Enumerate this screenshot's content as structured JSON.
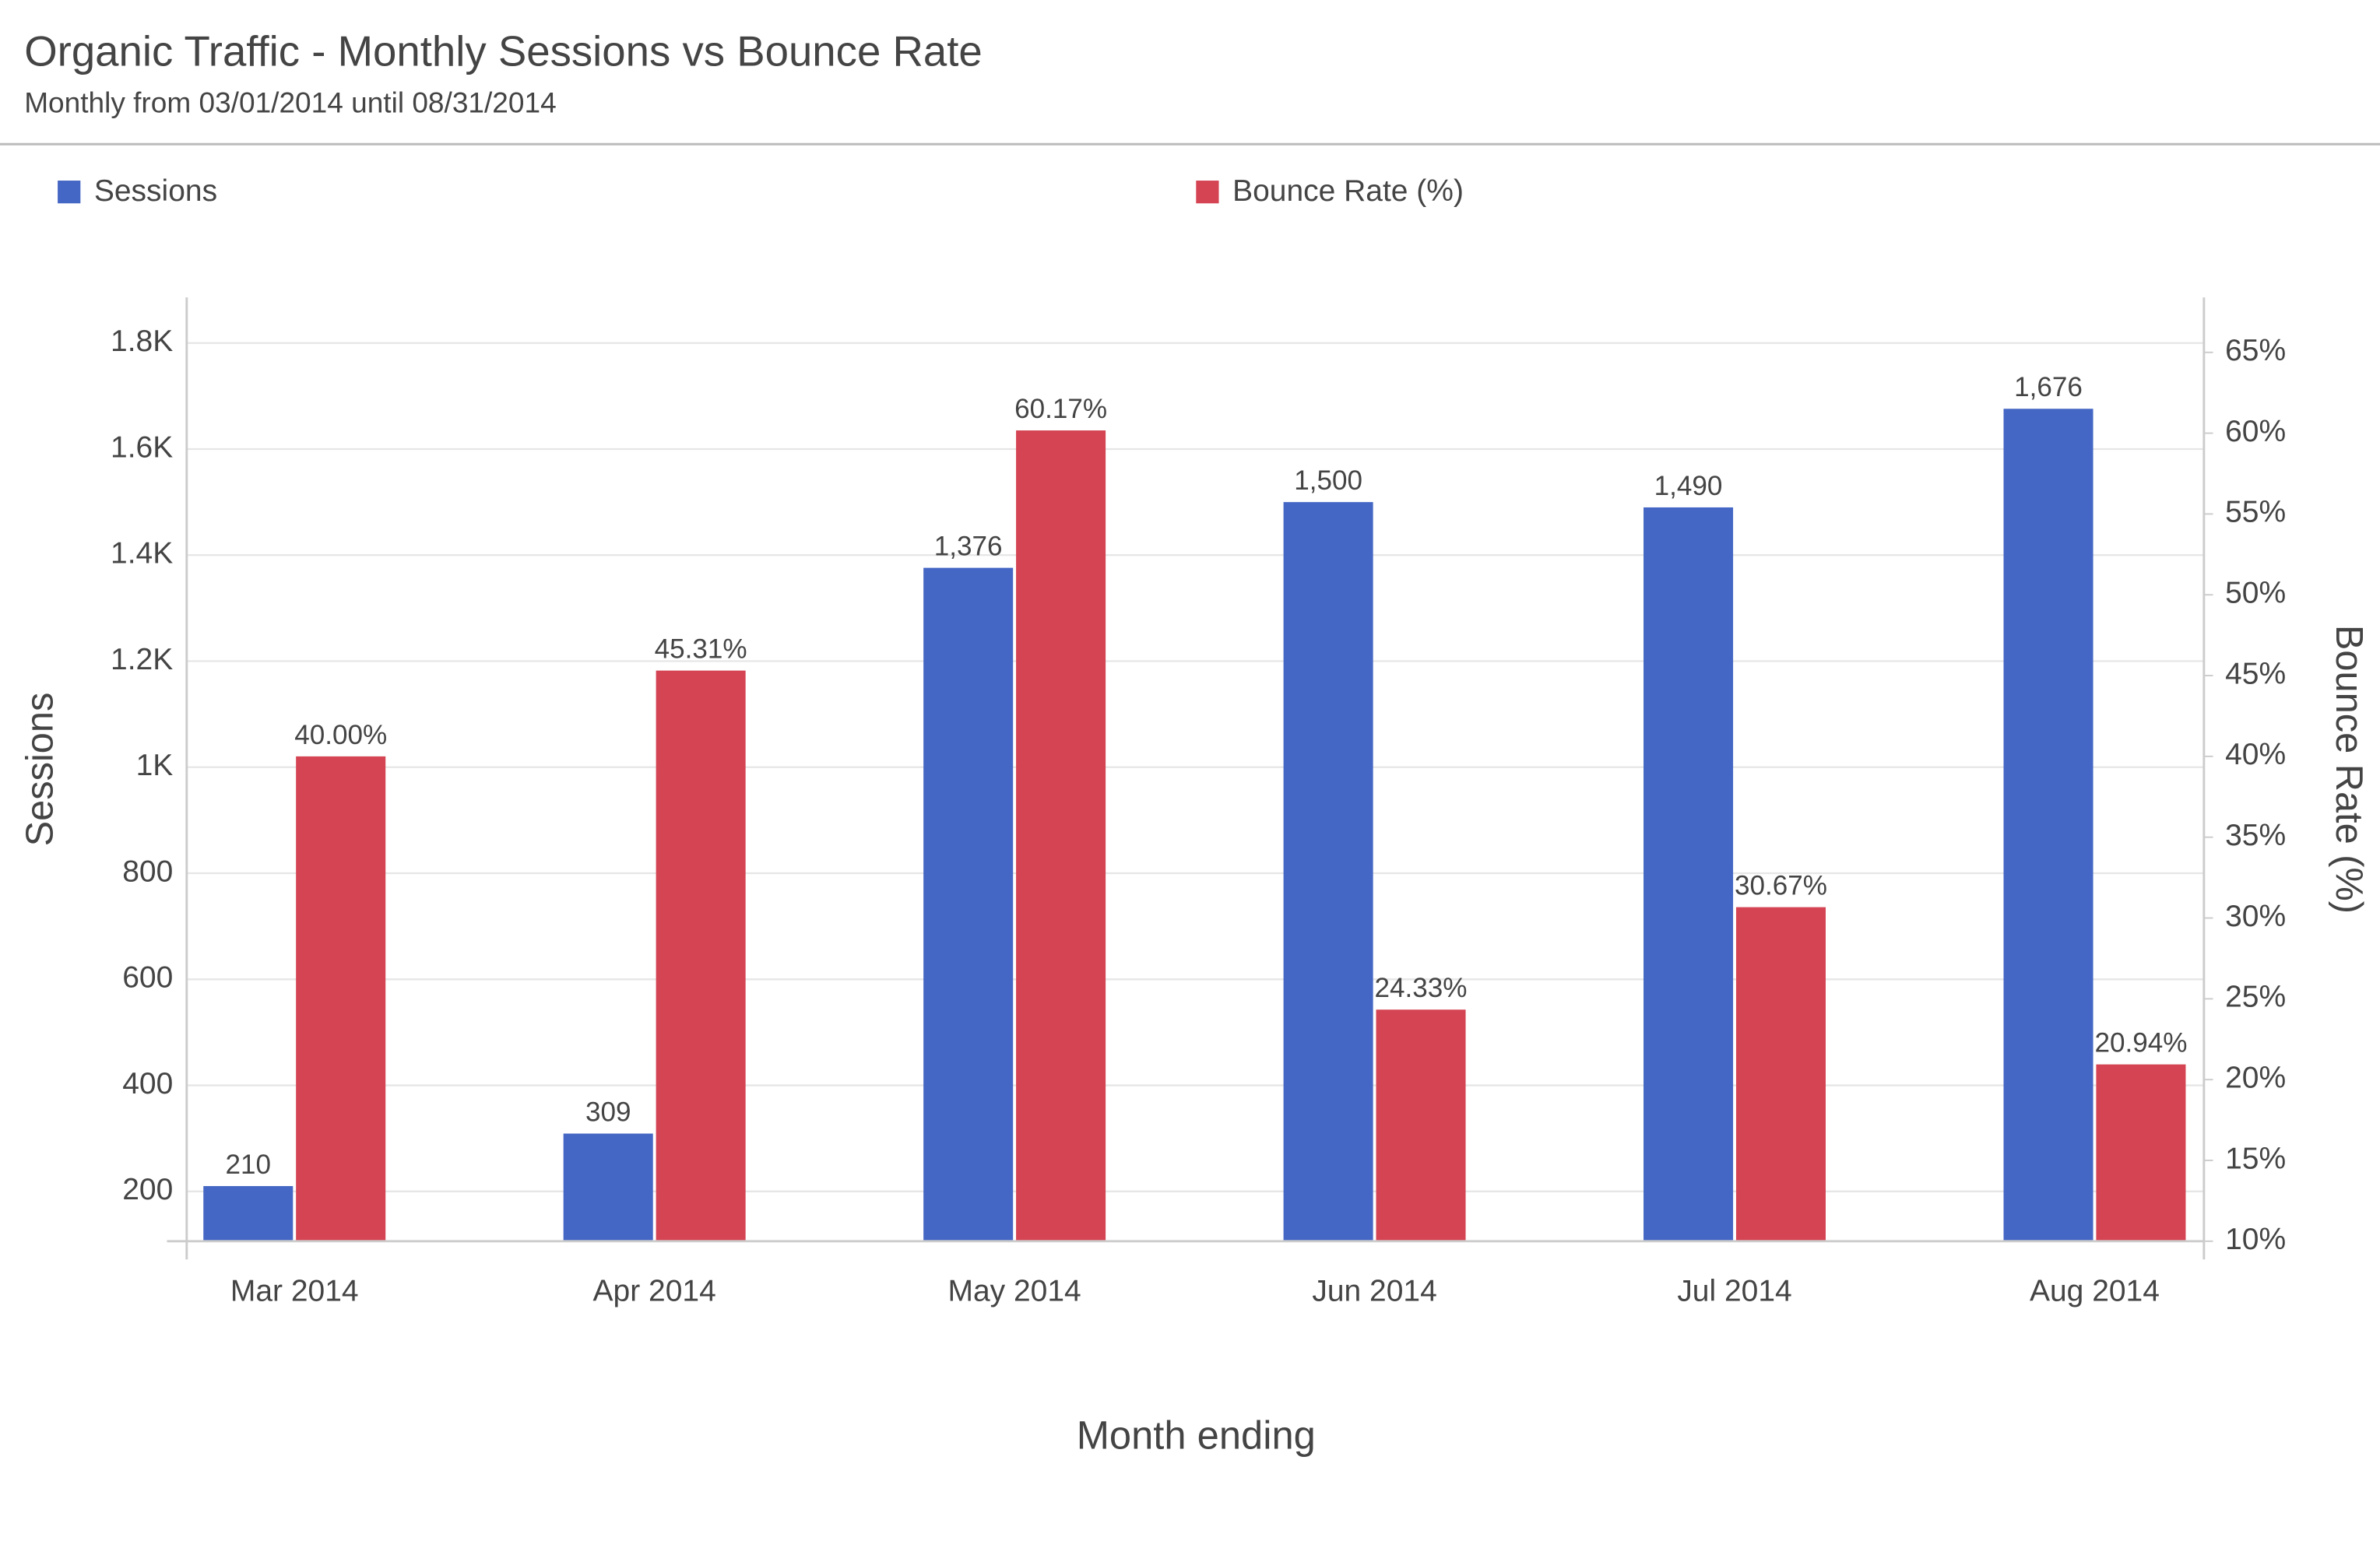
{
  "chart_data": {
    "type": "bar",
    "title": "Organic Traffic - Monthly Sessions vs Bounce Rate",
    "subtitle": "Monthly from 03/01/2014 until 08/31/2014",
    "x_label": "Month ending",
    "y_label": "Sessions",
    "y2_label": "Bounce Rate (%)",
    "categories": [
      "Mar 2014",
      "Apr 2014",
      "May 2014",
      "Jun 2014",
      "Jul 2014",
      "Aug 2014"
    ],
    "series": [
      {
        "name": "Sessions",
        "color": "#4466c4",
        "axis": "y",
        "values": [
          210,
          309,
          1376,
          1500,
          1490,
          1676
        ],
        "value_labels": [
          "210",
          "309",
          "1,376",
          "1,500",
          "1,490",
          "1,676"
        ]
      },
      {
        "name": "Bounce Rate (%)",
        "color": "#d44452",
        "axis": "y2",
        "values": [
          40.0,
          45.31,
          60.17,
          24.33,
          30.67,
          20.94
        ],
        "value_labels": [
          "40.00%",
          "45.31%",
          "60.17%",
          "24.33%",
          "30.67%",
          "20.94%"
        ]
      }
    ],
    "ylim": [
      106,
      1886
    ],
    "yticks": [
      200,
      400,
      600,
      800,
      {
        "value": 1000,
        "label": "1K"
      },
      {
        "value": 1200,
        "label": "1.2K"
      },
      {
        "value": 1400,
        "label": "1.4K"
      },
      {
        "value": 1600,
        "label": "1.6K"
      },
      {
        "value": 1800,
        "label": "1.8K"
      }
    ],
    "y2lim": [
      10,
      68.4
    ],
    "y2ticks": [
      {
        "value": 10,
        "label": "10%"
      },
      {
        "value": 15,
        "label": "15%"
      },
      {
        "value": 20,
        "label": "20%"
      },
      {
        "value": 25,
        "label": "25%"
      },
      {
        "value": 30,
        "label": "30%"
      },
      {
        "value": 35,
        "label": "35%"
      },
      {
        "value": 40,
        "label": "40%"
      },
      {
        "value": 45,
        "label": "45%"
      },
      {
        "value": 50,
        "label": "50%"
      },
      {
        "value": 55,
        "label": "55%"
      },
      {
        "value": 60,
        "label": "60%"
      },
      {
        "value": 65,
        "label": "65%"
      }
    ],
    "grid": true,
    "legend": "top"
  }
}
